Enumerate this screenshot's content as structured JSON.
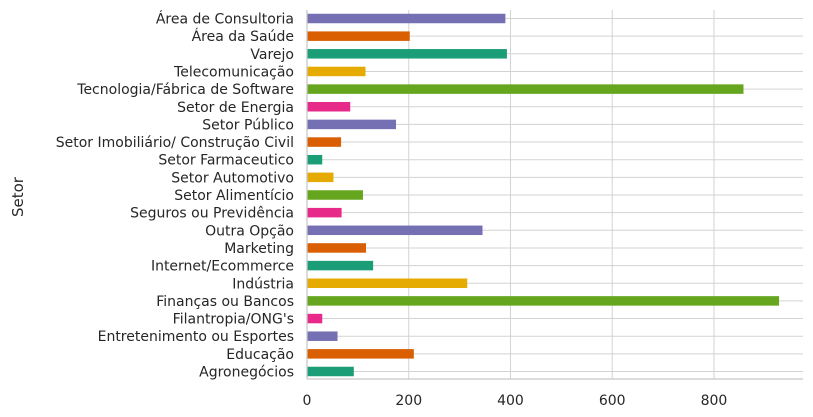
{
  "chart_data": {
    "type": "bar",
    "orientation": "horizontal",
    "ylabel": "Setor",
    "xlabel": "",
    "xlim": [
      0,
      975
    ],
    "xticks": [
      0,
      200,
      400,
      600,
      800
    ],
    "grid": true,
    "categories": [
      "Área de Consultoria",
      "Área da Saúde",
      "Varejo",
      "Telecomunicação",
      "Tecnologia/Fábrica de Software",
      "Setor de Energia",
      "Setor Público",
      "Setor Imobiliário/ Construção Civil",
      "Setor Farmaceutico",
      "Setor Automotivo",
      "Setor Alimentício",
      "Seguros ou Previdência",
      "Outra Opção",
      "Marketing",
      "Internet/Ecommerce",
      "Indústria",
      "Finanças ou Bancos",
      "Filantropia/ONG's",
      "Entretenimento ou Esportes",
      "Educação",
      "Agronegócios"
    ],
    "values": [
      390,
      202,
      393,
      115,
      858,
      85,
      175,
      67,
      30,
      52,
      110,
      68,
      345,
      116,
      130,
      315,
      928,
      30,
      60,
      210,
      92
    ],
    "colors": [
      "#7570b3",
      "#d95f02",
      "#1b9e77",
      "#e6ab02",
      "#66a61e",
      "#e7298a",
      "#7570b3",
      "#d95f02",
      "#1b9e77",
      "#e6ab02",
      "#66a61e",
      "#e7298a",
      "#7570b3",
      "#d95f02",
      "#1b9e77",
      "#e6ab02",
      "#66a61e",
      "#e7298a",
      "#7570b3",
      "#d95f02",
      "#1b9e77"
    ]
  }
}
